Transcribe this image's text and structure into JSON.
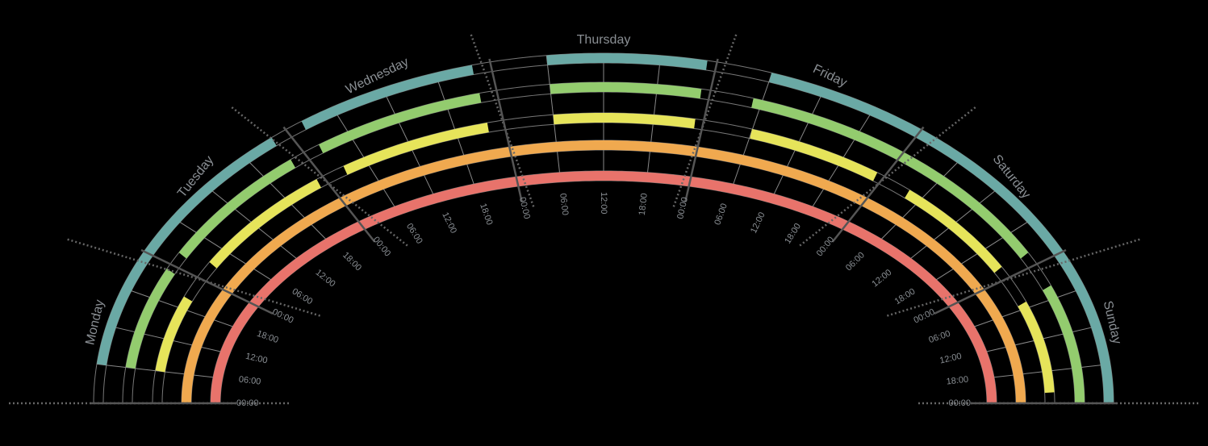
{
  "chart_data": {
    "type": "radial-week",
    "categories": [
      "Monday",
      "Tuesday",
      "Wednesday",
      "Thursday",
      "Friday",
      "Saturday",
      "Sunday"
    ],
    "xlim": [
      0,
      168
    ],
    "xticks": [
      {
        "value": 0,
        "label": "00:00"
      },
      {
        "value": 6,
        "label": "06:00"
      },
      {
        "value": 12,
        "label": "12:00"
      },
      {
        "value": 18,
        "label": "18:00"
      }
    ],
    "series": [
      {
        "color": "#e8736b",
        "segments": [
          [
            0,
            168
          ]
        ]
      },
      {
        "color": "#f0a94f",
        "segments": [
          [
            0,
            168
          ]
        ]
      },
      {
        "color": "#e6e45a",
        "segments": [
          [
            6,
            20
          ],
          [
            27,
            47
          ],
          [
            51,
            70
          ],
          [
            78,
            95
          ],
          [
            102,
            119
          ],
          [
            124,
            142
          ],
          [
            149,
            166
          ]
        ]
      },
      {
        "color": "#93cc6e",
        "segments": [
          [
            6,
            23
          ],
          [
            26,
            46
          ],
          [
            50,
            70
          ],
          [
            78,
            95
          ],
          [
            101,
            142
          ],
          [
            148,
            168
          ]
        ]
      },
      {
        "color": "#6aa9a5",
        "segments": [
          [
            6,
            46
          ],
          [
            50,
            70
          ],
          [
            78,
            95
          ],
          [
            102,
            168
          ]
        ]
      }
    ]
  }
}
